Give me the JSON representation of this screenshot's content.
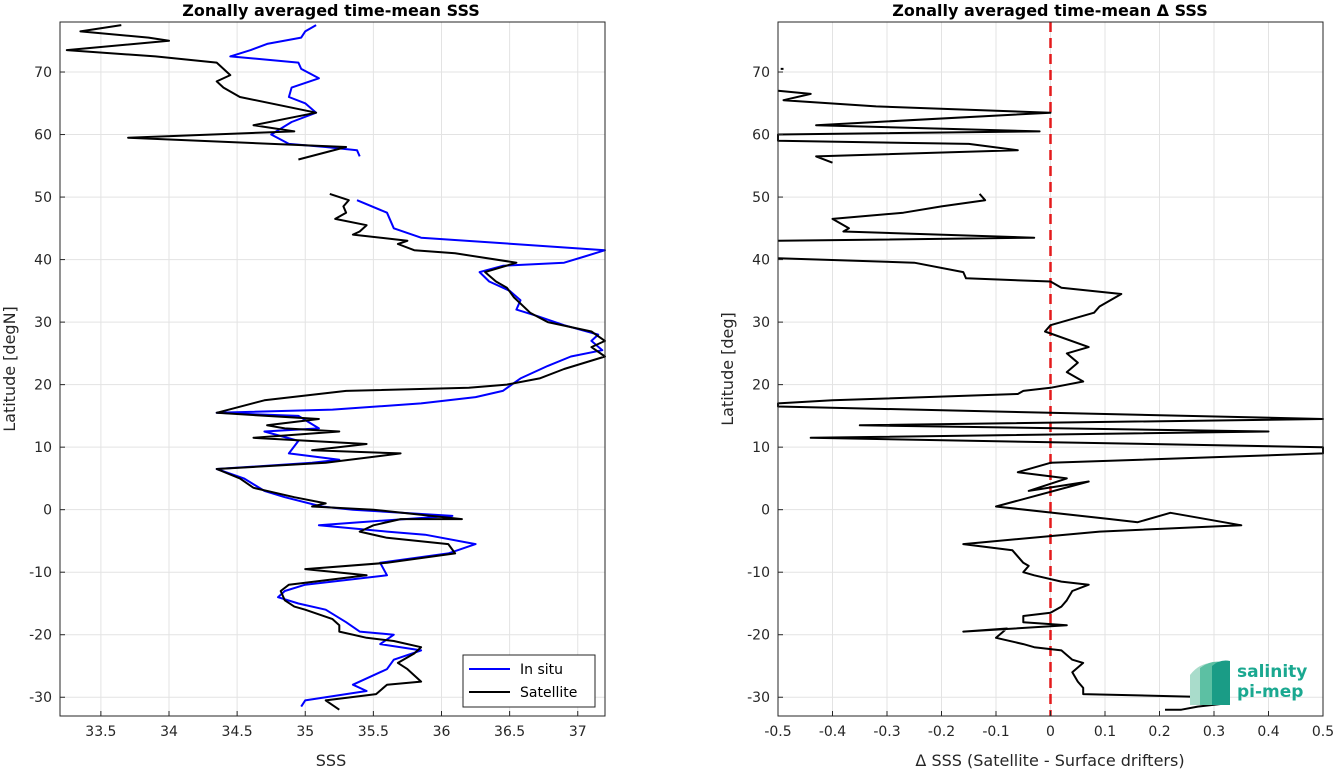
{
  "chart_data": [
    {
      "type": "line",
      "title": "Zonally averaged time-mean SSS",
      "xlabel": "SSS",
      "ylabel": "Latitude [degN]",
      "xlim": [
        33.2,
        37.2
      ],
      "ylim": [
        -33,
        78
      ],
      "xticks": [
        33.5,
        34,
        34.5,
        35,
        35.5,
        36,
        36.5,
        37
      ],
      "xtick_labels": [
        "33.5",
        "34",
        "34.5",
        "35",
        "35.5",
        "36",
        "36.5",
        "37"
      ],
      "yticks": [
        -30,
        -20,
        -10,
        0,
        10,
        20,
        30,
        40,
        50,
        60,
        70
      ],
      "ytick_labels": [
        "-30",
        "-20",
        "-10",
        "0",
        "10",
        "20",
        "30",
        "40",
        "50",
        "60",
        "70"
      ],
      "grid": true,
      "legend_position": "bottom-right",
      "series": [
        {
          "name": "In situ",
          "color": "#0000ff",
          "points": [
            [
              35.08,
              77.5
            ],
            [
              35.0,
              76.5
            ],
            [
              34.97,
              75.5
            ],
            [
              34.72,
              74.5
            ],
            [
              34.6,
              73.5
            ],
            [
              34.45,
              72.5
            ],
            [
              34.95,
              71.5
            ],
            [
              34.97,
              70.5
            ],
            [
              35.1,
              69
            ],
            [
              34.9,
              67.5
            ],
            [
              34.88,
              66
            ],
            [
              35.0,
              65
            ],
            [
              35.08,
              63.5
            ],
            [
              34.9,
              62
            ],
            [
              34.75,
              60
            ],
            [
              34.88,
              58.5
            ],
            [
              35.15,
              58
            ],
            [
              35.38,
              57.5
            ],
            [
              35.4,
              56.5
            ],
            null,
            [
              35.38,
              49.5
            ],
            [
              35.6,
              47.5
            ],
            [
              35.65,
              45
            ],
            [
              35.85,
              43.5
            ],
            [
              37.2,
              41.5
            ],
            [
              37.05,
              40.5
            ],
            [
              36.9,
              39.5
            ],
            [
              36.45,
              39
            ],
            [
              36.28,
              38
            ],
            [
              36.35,
              36.5
            ],
            [
              36.5,
              35
            ],
            [
              36.58,
              33.5
            ],
            [
              36.55,
              32
            ],
            [
              36.7,
              31
            ],
            [
              36.9,
              29.5
            ],
            [
              37.15,
              28
            ],
            [
              37.1,
              27
            ],
            [
              37.18,
              25.5
            ],
            [
              36.95,
              24.5
            ],
            [
              36.78,
              23
            ],
            [
              36.58,
              21
            ],
            [
              36.45,
              19
            ],
            [
              36.25,
              18
            ],
            [
              35.85,
              17
            ],
            [
              35.2,
              16
            ],
            [
              34.35,
              15.5
            ],
            [
              34.95,
              15
            ],
            [
              35.1,
              13
            ],
            [
              34.7,
              12.5
            ],
            [
              34.95,
              11
            ],
            [
              34.88,
              9
            ],
            [
              35.25,
              8
            ],
            [
              35.05,
              7.5
            ],
            [
              34.35,
              6.5
            ],
            [
              34.55,
              5
            ],
            [
              34.7,
              3
            ],
            [
              34.85,
              2
            ],
            [
              35.12,
              0.5
            ],
            [
              35.35,
              0
            ],
            [
              36.08,
              -1
            ],
            [
              35.4,
              -2
            ],
            [
              35.1,
              -2.5
            ],
            [
              35.6,
              -3.5
            ],
            [
              35.88,
              -4
            ],
            [
              36.25,
              -5.5
            ],
            [
              36.05,
              -7
            ],
            [
              35.55,
              -8.5
            ],
            [
              35.6,
              -10.5
            ],
            [
              35.0,
              -12
            ],
            [
              34.85,
              -13
            ],
            [
              34.8,
              -14
            ],
            [
              34.95,
              -15
            ],
            [
              35.15,
              -16
            ],
            [
              35.3,
              -18
            ],
            [
              35.4,
              -19.5
            ],
            [
              35.65,
              -20
            ],
            [
              35.55,
              -21.5
            ],
            [
              35.85,
              -22.5
            ],
            [
              35.65,
              -24
            ],
            [
              35.6,
              -25.5
            ],
            [
              35.35,
              -28
            ],
            [
              35.45,
              -29
            ],
            [
              35.0,
              -30.5
            ],
            [
              34.97,
              -31.5
            ]
          ]
        },
        {
          "name": "Satellite",
          "color": "#000000",
          "points": [
            [
              33.65,
              77.5
            ],
            [
              33.35,
              76.5
            ],
            [
              33.85,
              75.5
            ],
            [
              34.0,
              75
            ],
            [
              33.25,
              73.5
            ],
            [
              33.9,
              72.5
            ],
            [
              34.35,
              71.5
            ],
            [
              34.45,
              69.5
            ],
            [
              34.35,
              68.5
            ],
            [
              34.4,
              67.5
            ],
            [
              34.52,
              66
            ],
            [
              35.08,
              63.5
            ],
            [
              34.62,
              61.5
            ],
            [
              34.92,
              60.5
            ],
            [
              33.7,
              59.5
            ],
            [
              35.3,
              58
            ],
            [
              34.95,
              56
            ]
          ],
          "points_note": "segment 1"
        }
      ]
    },
    {
      "type": "line",
      "title": "Zonally averaged time-mean Δ SSS",
      "xlabel": "Δ SSS (Satellite - Surface drifters)",
      "ylabel": "Latitude [deg]",
      "xlim": [
        -0.5,
        0.5
      ],
      "ylim": [
        -33,
        78
      ],
      "xticks": [
        -0.5,
        -0.4,
        -0.3,
        -0.2,
        -0.1,
        0,
        0.1,
        0.2,
        0.3,
        0.4,
        0.5
      ],
      "xtick_labels": [
        "-0.5",
        "-0.4",
        "-0.3",
        "-0.2",
        "-0.1",
        "0",
        "0.1",
        "0.2",
        "0.3",
        "0.4",
        "0.5"
      ],
      "yticks": [
        -30,
        -20,
        -10,
        0,
        10,
        20,
        30,
        40,
        50,
        60,
        70
      ],
      "ytick_labels": [
        "-30",
        "-20",
        "-10",
        "0",
        "10",
        "20",
        "30",
        "40",
        "50",
        "60",
        "70"
      ],
      "grid": true,
      "reference_line": {
        "x": 0,
        "color": "#e41a1c",
        "style": "dashed"
      },
      "series": [
        {
          "name": "",
          "color": "#000000",
          "points": [
            [
              -0.49,
              70.5
            ],
            [
              -0.495,
              70.5
            ],
            null,
            [
              -0.5,
              67
            ],
            [
              -0.44,
              66.5
            ],
            [
              -0.49,
              65.5
            ],
            [
              -0.32,
              64.5
            ],
            [
              0.0,
              63.5
            ],
            [
              -0.43,
              61.5
            ],
            [
              -0.02,
              60.5
            ],
            [
              -0.5,
              60
            ],
            [
              -0.5,
              59
            ],
            [
              -0.15,
              58.5
            ],
            [
              -0.06,
              57.5
            ],
            [
              -0.43,
              56.5
            ],
            [
              -0.4,
              55.5
            ],
            null,
            [
              -0.13,
              50.5
            ],
            [
              -0.12,
              49.5
            ],
            [
              -0.2,
              48.5
            ],
            [
              -0.27,
              47.5
            ],
            [
              -0.4,
              46.5
            ],
            [
              -0.37,
              45
            ],
            [
              -0.38,
              44.5
            ],
            [
              -0.03,
              43.5
            ],
            [
              -0.5,
              43
            ],
            null,
            [
              -0.5,
              40.2
            ],
            [
              -0.25,
              39.5
            ],
            [
              -0.16,
              38
            ],
            [
              -0.155,
              37
            ],
            [
              -0.0,
              36.5
            ],
            [
              0.02,
              35.5
            ],
            [
              0.13,
              34.5
            ],
            [
              0.09,
              32.5
            ],
            [
              0.08,
              31.5
            ],
            [
              0.0,
              29.5
            ],
            [
              -0.01,
              28.5
            ],
            [
              0.07,
              26
            ],
            [
              0.03,
              25
            ],
            [
              0.05,
              23.5
            ],
            [
              0.03,
              22
            ],
            [
              0.06,
              20.5
            ],
            [
              0.0,
              19.5
            ],
            [
              -0.05,
              19
            ],
            [
              -0.06,
              18.5
            ],
            [
              -0.4,
              17.5
            ],
            [
              -0.5,
              17
            ],
            [
              -0.5,
              16.5
            ],
            [
              0.5,
              14.5
            ],
            [
              -0.35,
              13.5
            ],
            [
              0.4,
              12.5
            ],
            [
              -0.44,
              11.5
            ],
            [
              0.5,
              10
            ],
            [
              0.5,
              9
            ],
            [
              0.0,
              7.5
            ],
            [
              -0.06,
              6
            ],
            [
              0.03,
              5
            ],
            [
              -0.04,
              3
            ],
            [
              0.07,
              4.5
            ],
            [
              -0.1,
              0.5
            ],
            [
              0.11,
              -1.5
            ],
            [
              0.16,
              -2
            ],
            [
              0.22,
              -0.5
            ],
            [
              0.35,
              -2.5
            ],
            [
              0.09,
              -3.5
            ],
            [
              -0.16,
              -5.5
            ],
            [
              -0.07,
              -6.5
            ],
            [
              -0.05,
              -8.5
            ],
            [
              -0.04,
              -9
            ],
            [
              -0.05,
              -10
            ],
            [
              -0.03,
              -10.5
            ],
            [
              0.02,
              -11.5
            ],
            [
              0.07,
              -12
            ],
            [
              0.04,
              -13
            ],
            [
              0.03,
              -14.5
            ],
            [
              0.02,
              -15.5
            ],
            [
              0.0,
              -16.5
            ],
            [
              -0.05,
              -17
            ],
            [
              -0.05,
              -18
            ],
            [
              0.03,
              -18.5
            ],
            [
              -0.16,
              -19.5
            ],
            [
              -0.08,
              -19
            ],
            [
              -0.1,
              -20.5
            ],
            [
              -0.05,
              -21.5
            ],
            [
              -0.03,
              -22
            ],
            [
              0.02,
              -22.5
            ],
            [
              0.04,
              -24
            ],
            [
              0.06,
              -24.5
            ],
            [
              0.04,
              -26
            ],
            [
              0.05,
              -27.5
            ],
            [
              0.06,
              -28.5
            ],
            [
              0.06,
              -29.5
            ],
            [
              0.3,
              -30
            ],
            [
              0.32,
              -31
            ],
            [
              0.27,
              -31.5
            ],
            [
              0.24,
              -32
            ],
            [
              0.21,
              -32
            ]
          ]
        }
      ]
    }
  ],
  "legend": {
    "items": [
      "In situ",
      "Satellite"
    ]
  },
  "logo": {
    "line1": "salinity",
    "line2": "pi-mep"
  }
}
